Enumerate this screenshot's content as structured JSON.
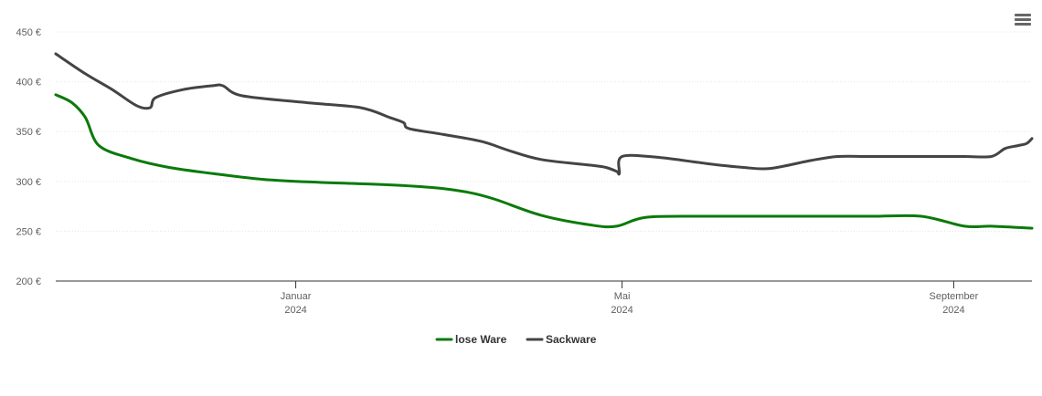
{
  "chart_data": {
    "type": "line",
    "x_axis": {
      "ticks": [
        {
          "month": "Januar",
          "year": "2024",
          "date": "2024-01-01"
        },
        {
          "month": "Mai",
          "year": "2024",
          "date": "2024-05-01"
        },
        {
          "month": "September",
          "year": "2024",
          "date": "2024-09-01"
        }
      ],
      "range": [
        "2023-10-04",
        "2024-09-30"
      ]
    },
    "y_axis": {
      "ticks": [
        "450 €",
        "400 €",
        "350 €",
        "300 €",
        "250 €",
        "200 €"
      ],
      "range": [
        200,
        450
      ],
      "grid": true
    },
    "legend": {
      "position": "bottom-center"
    },
    "series": [
      {
        "name": "lose Ware",
        "color": "#0a7a0a",
        "points": [
          [
            "2023-10-04",
            387
          ],
          [
            "2023-10-10",
            379
          ],
          [
            "2023-10-15",
            364
          ],
          [
            "2023-10-20",
            336
          ],
          [
            "2023-11-01",
            323
          ],
          [
            "2023-11-15",
            314
          ],
          [
            "2023-12-01",
            308
          ],
          [
            "2023-12-20",
            302
          ],
          [
            "2024-01-10",
            299
          ],
          [
            "2024-02-01",
            297
          ],
          [
            "2024-02-20",
            294
          ],
          [
            "2024-03-05",
            289
          ],
          [
            "2024-03-15",
            282
          ],
          [
            "2024-04-01",
            266
          ],
          [
            "2024-04-20",
            256
          ],
          [
            "2024-04-29",
            255
          ],
          [
            "2024-05-10",
            264
          ],
          [
            "2024-06-01",
            265
          ],
          [
            "2024-07-01",
            265
          ],
          [
            "2024-08-01",
            265
          ],
          [
            "2024-08-20",
            265
          ],
          [
            "2024-09-05",
            255
          ],
          [
            "2024-09-15",
            255
          ],
          [
            "2024-09-30",
            253
          ]
        ]
      },
      {
        "name": "Sackware",
        "color": "#444444",
        "points": [
          [
            "2023-10-04",
            428
          ],
          [
            "2023-10-15",
            408
          ],
          [
            "2023-10-25",
            392
          ],
          [
            "2023-11-03",
            376
          ],
          [
            "2023-11-08",
            374
          ],
          [
            "2023-11-10",
            384
          ],
          [
            "2023-11-20",
            392
          ],
          [
            "2023-12-01",
            396
          ],
          [
            "2023-12-05",
            396
          ],
          [
            "2023-12-12",
            386
          ],
          [
            "2024-01-05",
            379
          ],
          [
            "2024-01-25",
            374
          ],
          [
            "2024-02-05",
            364
          ],
          [
            "2024-02-10",
            359
          ],
          [
            "2024-02-12",
            353
          ],
          [
            "2024-02-25",
            347
          ],
          [
            "2024-03-10",
            340
          ],
          [
            "2024-03-20",
            331
          ],
          [
            "2024-04-01",
            322
          ],
          [
            "2024-04-20",
            316
          ],
          [
            "2024-04-25",
            314
          ],
          [
            "2024-04-29",
            310
          ],
          [
            "2024-04-30",
            308
          ],
          [
            "2024-05-01",
            325
          ],
          [
            "2024-05-15",
            324
          ],
          [
            "2024-06-01",
            318
          ],
          [
            "2024-06-15",
            314
          ],
          [
            "2024-06-25",
            313
          ],
          [
            "2024-07-10",
            321
          ],
          [
            "2024-07-20",
            325
          ],
          [
            "2024-08-01",
            325
          ],
          [
            "2024-08-20",
            325
          ],
          [
            "2024-09-05",
            325
          ],
          [
            "2024-09-15",
            325
          ],
          [
            "2024-09-20",
            333
          ],
          [
            "2024-09-25",
            336
          ],
          [
            "2024-09-28",
            338
          ],
          [
            "2024-09-30",
            343
          ]
        ]
      }
    ]
  },
  "menu": {
    "icon": "hamburger-menu-icon"
  }
}
